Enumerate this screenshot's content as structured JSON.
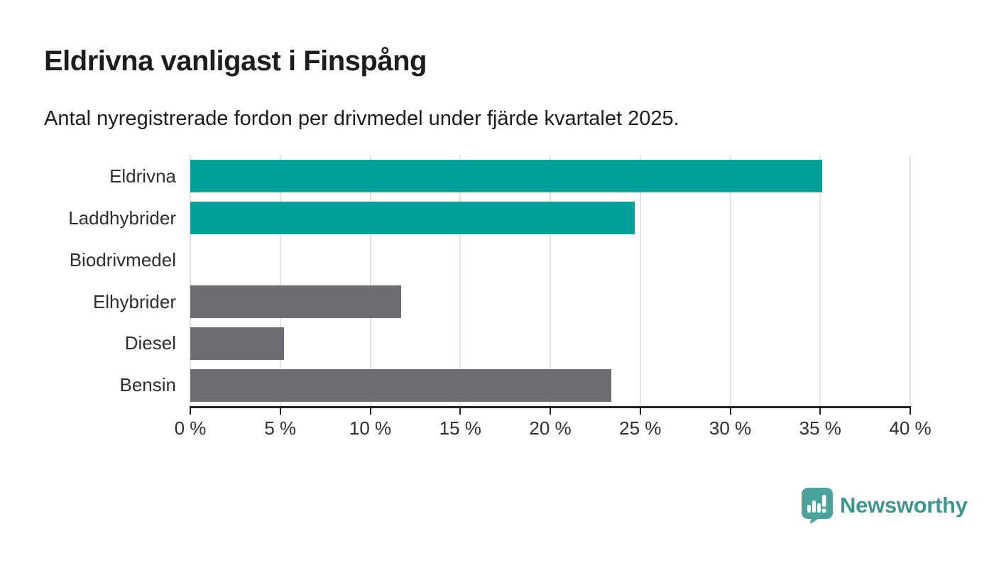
{
  "title": "Eldrivna vanligast i Finspång",
  "subtitle": "Antal nyregistrerade fordon per drivmedel under fjärde kvartalet 2025.",
  "chart_data": {
    "type": "bar",
    "orientation": "horizontal",
    "title": "Eldrivna vanligast i Finspång",
    "subtitle": "Antal nyregistrerade fordon per drivmedel under fjärde kvartalet 2025.",
    "categories": [
      "Eldrivna",
      "Laddhybrider",
      "Biodrivmedel",
      "Elhybrider",
      "Diesel",
      "Bensin"
    ],
    "values": [
      35.1,
      24.7,
      0,
      11.7,
      5.2,
      23.4
    ],
    "unit": "%",
    "bar_colors": [
      "#00a099",
      "#00a099",
      "#6e6d71",
      "#6e6d71",
      "#6e6d71",
      "#6e6d71"
    ],
    "xlim": [
      0,
      40
    ],
    "xticks": [
      0,
      5,
      10,
      15,
      20,
      25,
      30,
      35,
      40
    ],
    "xtick_labels": [
      "0 %",
      "5 %",
      "10 %",
      "15 %",
      "20 %",
      "25 %",
      "30 %",
      "35 %",
      "40 %"
    ],
    "xlabel": "",
    "ylabel": "",
    "grid": "vertical-only",
    "legend": "none"
  },
  "colors": {
    "accent_teal": "#00a099",
    "neutral_gray": "#6e6d71",
    "gridline": "#e3e3e3",
    "axis": "#222222",
    "text": "#1d1d1b",
    "logo_teal": "#3f968f",
    "logo_icon_teal": "#4aa29a"
  },
  "branding": {
    "logo_text": "Newsworthy",
    "logo_icon": "newsworthy-speech-bubble-bar-chart-icon"
  }
}
